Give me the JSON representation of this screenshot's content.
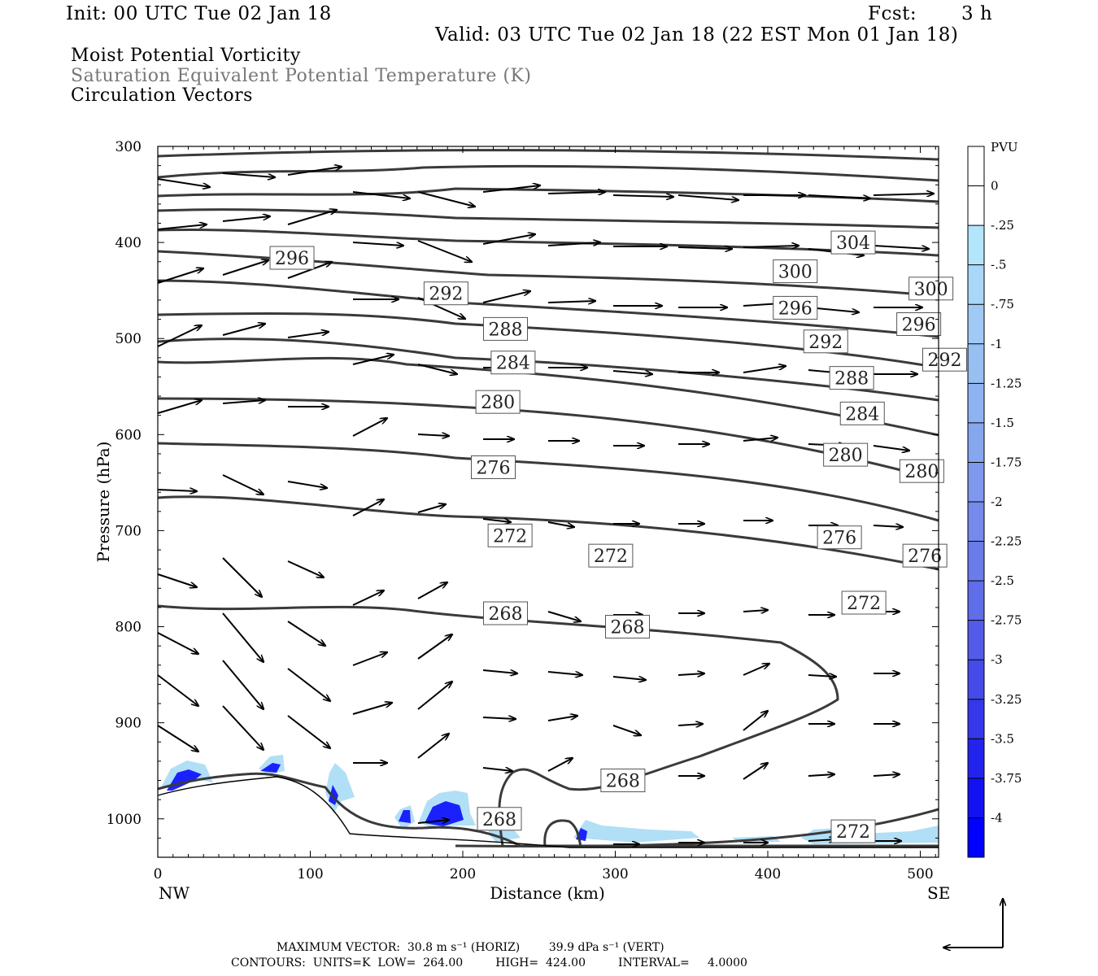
{
  "header": {
    "init": "Init: 00 UTC Tue 02 Jan 18",
    "fcst_label": "Fcst:",
    "fcst_value": "3 h",
    "valid": "Valid: 03 UTC Tue 02 Jan 18 (22 EST Mon 01 Jan 18)"
  },
  "fields": {
    "line1": "Moist Potential Vorticity",
    "line2": "Saturation Equivalent Potential Temperature (K)",
    "line3": "Circulation Vectors"
  },
  "colors": {
    "contour": "#3a3a3a",
    "vector": "#000000",
    "pv_light": "#a8dcf5",
    "pv_dark": "#0000ff"
  },
  "footer": {
    "max_vector": "MAXIMUM VECTOR:  30.8 m s⁻¹ (HORIZ)        39.9 dPa s⁻¹ (VERT)",
    "contours": "CONTOURS:  UNITS=K  LOW=  264.00         HIGH=  424.00         INTERVAL=     4.0000"
  },
  "chart_data": {
    "type": "cross-section",
    "xlabel": "Distance (km)",
    "ylabel": "Pressure (hPa)",
    "xlim": [
      0,
      512
    ],
    "ylim": [
      1040,
      300
    ],
    "x_ticks": [
      "0",
      "100",
      "200",
      "300",
      "400",
      "500"
    ],
    "y_ticks": [
      "300",
      "400",
      "500",
      "600",
      "700",
      "800",
      "900",
      "1000"
    ],
    "x_end_labels": {
      "left": "NW",
      "right": "SE"
    },
    "colorbar": {
      "title": "PVU",
      "levels": [
        "0",
        "-.25",
        "-.5",
        "-.75",
        "-1",
        "-1.25",
        "-1.5",
        "-1.75",
        "-2",
        "-2.25",
        "-2.5",
        "-2.75",
        "-3",
        "-3.25",
        "-3.5",
        "-3.75",
        "-4"
      ],
      "colors": [
        "#ffffff",
        "#ffffff",
        "#b3e5fb",
        "#aad7f8",
        "#a0caf5",
        "#98bff2",
        "#8fb3f0",
        "#86a6ee",
        "#7e98ec",
        "#758aea",
        "#6a7ce9",
        "#5f6de8",
        "#535ce8",
        "#454be9",
        "#3438ea",
        "#2224ed",
        "#1212f1",
        "#0000ff"
      ]
    },
    "contour_labels": [
      {
        "x": 88,
        "p": 416,
        "v": "296"
      },
      {
        "x": 189,
        "p": 453,
        "v": "292"
      },
      {
        "x": 228,
        "p": 490,
        "v": "288"
      },
      {
        "x": 233,
        "p": 525,
        "v": "284"
      },
      {
        "x": 223,
        "p": 566,
        "v": "280"
      },
      {
        "x": 220,
        "p": 634,
        "v": "276"
      },
      {
        "x": 231,
        "p": 705,
        "v": "272"
      },
      {
        "x": 297,
        "p": 726,
        "v": "272"
      },
      {
        "x": 228,
        "p": 786,
        "v": "268"
      },
      {
        "x": 308,
        "p": 800,
        "v": "268"
      },
      {
        "x": 305,
        "p": 960,
        "v": "268"
      },
      {
        "x": 224,
        "p": 1000,
        "v": "268"
      },
      {
        "x": 456,
        "p": 1013,
        "v": "272"
      },
      {
        "x": 456,
        "p": 400,
        "v": "304"
      },
      {
        "x": 418,
        "p": 430,
        "v": "300"
      },
      {
        "x": 418,
        "p": 468,
        "v": "296"
      },
      {
        "x": 507,
        "p": 448,
        "v": "300"
      },
      {
        "x": 499,
        "p": 485,
        "v": "296"
      },
      {
        "x": 438,
        "p": 503,
        "v": "292"
      },
      {
        "x": 516,
        "p": 522,
        "v": "292"
      },
      {
        "x": 455,
        "p": 541,
        "v": "288"
      },
      {
        "x": 462,
        "p": 578,
        "v": "284"
      },
      {
        "x": 451,
        "p": 621,
        "v": "280"
      },
      {
        "x": 501,
        "p": 638,
        "v": "280"
      },
      {
        "x": 447,
        "p": 707,
        "v": "276"
      },
      {
        "x": 503,
        "p": 726,
        "v": "276"
      },
      {
        "x": 463,
        "p": 775,
        "v": "272"
      }
    ]
  }
}
